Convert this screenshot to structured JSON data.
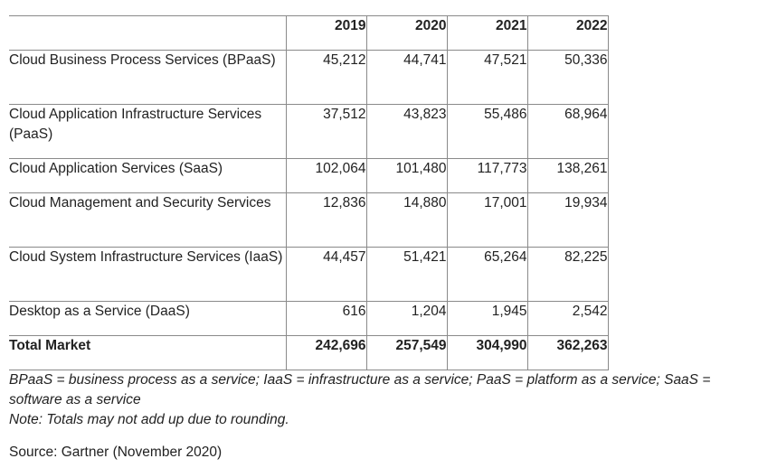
{
  "table": {
    "years": [
      "2019",
      "2020",
      "2021",
      "2022"
    ],
    "rows": [
      {
        "label": "Cloud Business Process Services (BPaaS)",
        "values": [
          "45,212",
          "44,741",
          "47,521",
          "50,336"
        ]
      },
      {
        "label": "Cloud Application Infrastructure Services (PaaS)",
        "values": [
          "37,512",
          "43,823",
          "55,486",
          "68,964"
        ]
      },
      {
        "label": "Cloud Application Services (SaaS)",
        "values": [
          "102,064",
          "101,480",
          "117,773",
          "138,261"
        ]
      },
      {
        "label": "Cloud Management and Security Services",
        "values": [
          "12,836",
          "14,880",
          "17,001",
          "19,934"
        ]
      },
      {
        "label": "Cloud System Infrastructure Services (IaaS)",
        "values": [
          "44,457",
          "51,421",
          "65,264",
          "82,225"
        ]
      },
      {
        "label": "Desktop as a Service (DaaS)",
        "values": [
          "616",
          "1,204",
          "1,945",
          "2,542"
        ]
      }
    ],
    "total": {
      "label": "Total Market",
      "values": [
        "242,696",
        "257,549",
        "304,990",
        "362,263"
      ]
    }
  },
  "notes": {
    "abbreviations": "BPaaS = business process as a service; IaaS = infrastructure as a service; PaaS = platform as a service; SaaS = software as a service",
    "rounding": "Note: Totals may not add up due to rounding.",
    "source": "Source: Gartner (November 2020)"
  }
}
